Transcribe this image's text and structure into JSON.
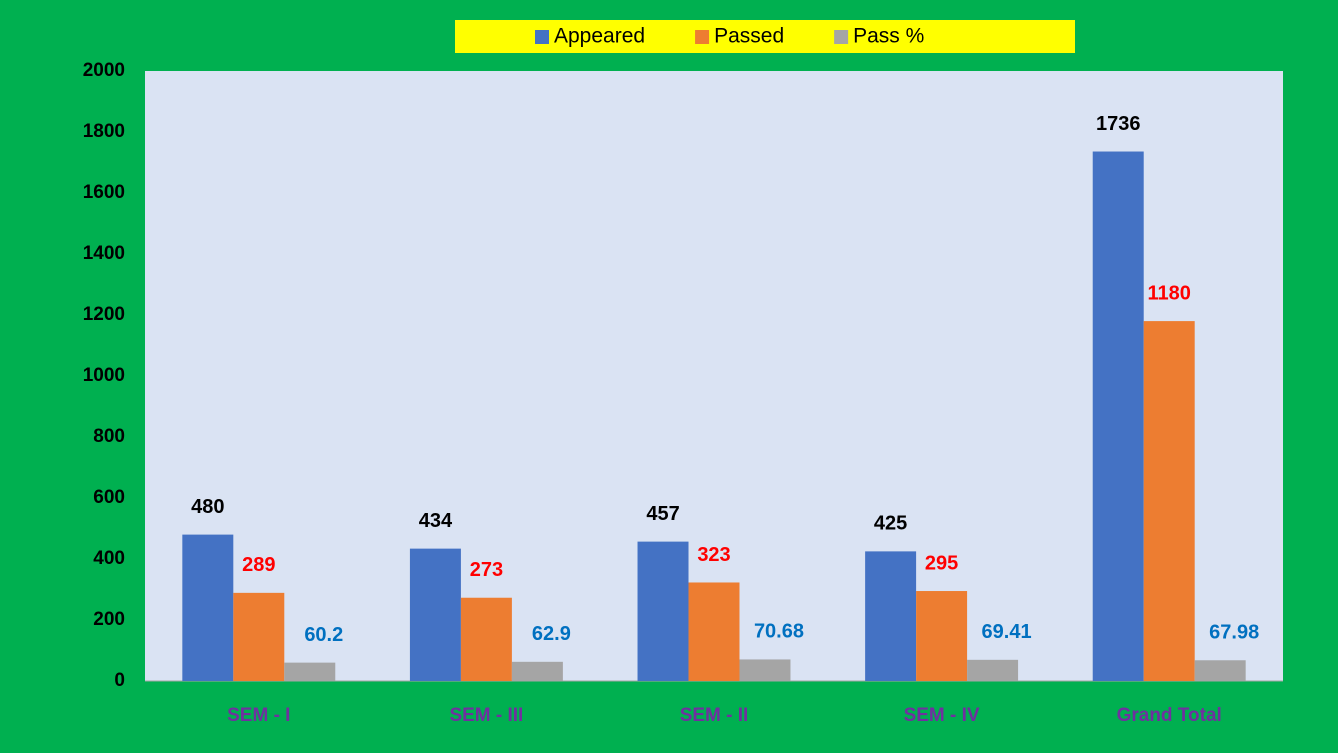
{
  "chart_data": {
    "type": "bar",
    "categories": [
      "SEM - I",
      "SEM - III",
      "SEM - II",
      "SEM - IV",
      "Grand Total"
    ],
    "series": [
      {
        "name": "Appeared",
        "color": "#4472c4",
        "label_color": "#000000",
        "values": [
          480,
          434,
          457,
          425,
          1736
        ]
      },
      {
        "name": "Passed",
        "color": "#ed7d31",
        "label_color": "#ff0000",
        "values": [
          289,
          273,
          323,
          295,
          1180
        ]
      },
      {
        "name": "Pass %",
        "color": "#a5a5a5",
        "label_color": "#0070c0",
        "values": [
          60.2,
          62.9,
          70.68,
          69.41,
          67.98
        ]
      }
    ],
    "ylim": [
      0,
      2000
    ],
    "yticks": [
      0,
      200,
      400,
      600,
      800,
      1000,
      1200,
      1400,
      1600,
      1800,
      2000
    ],
    "grid": false,
    "legend": "top"
  }
}
